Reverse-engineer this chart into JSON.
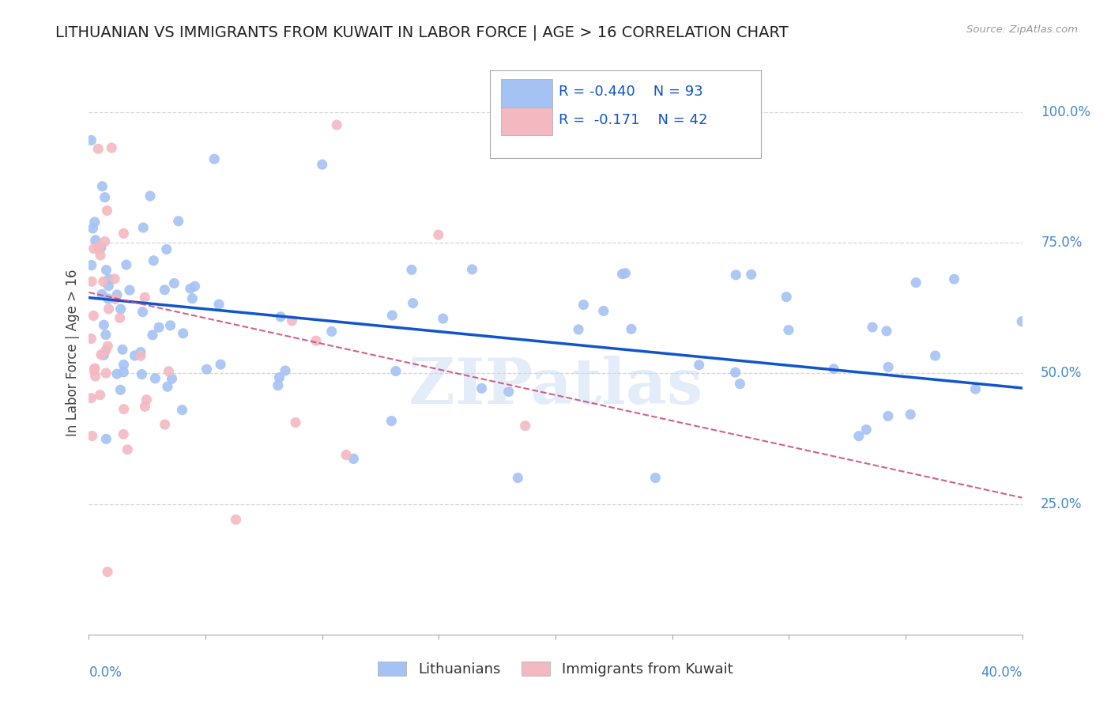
{
  "title": "LITHUANIAN VS IMMIGRANTS FROM KUWAIT IN LABOR FORCE | AGE > 16 CORRELATION CHART",
  "source": "Source: ZipAtlas.com",
  "ylabel": "In Labor Force | Age > 16",
  "ylabel_right_ticks": [
    "100.0%",
    "75.0%",
    "50.0%",
    "25.0%"
  ],
  "ylabel_right_vals": [
    1.0,
    0.75,
    0.5,
    0.25
  ],
  "xmin": 0.0,
  "xmax": 0.4,
  "ymin": 0.0,
  "ymax": 1.08,
  "R_blue": -0.44,
  "N_blue": 93,
  "R_pink": -0.171,
  "N_pink": 42,
  "blue_color": "#a4c2f4",
  "pink_color": "#f4b8c1",
  "blue_line_color": "#1155cc",
  "pink_line_color": "#cc4477",
  "text_blue": "#1155cc",
  "axis_text_blue": "#4488cc",
  "background": "#ffffff",
  "grid_color": "#cccccc",
  "title_fontsize": 14,
  "legend_fontsize": 13,
  "axis_label_fontsize": 12,
  "tick_fontsize": 12,
  "watermark": "ZIPatlas",
  "blue_trend_x0": 0.0,
  "blue_trend_y0": 0.645,
  "blue_trend_x1": 0.4,
  "blue_trend_y1": 0.472,
  "pink_trend_x0": 0.0,
  "pink_trend_y0": 0.655,
  "pink_trend_x1": 0.4,
  "pink_trend_y1": 0.262
}
